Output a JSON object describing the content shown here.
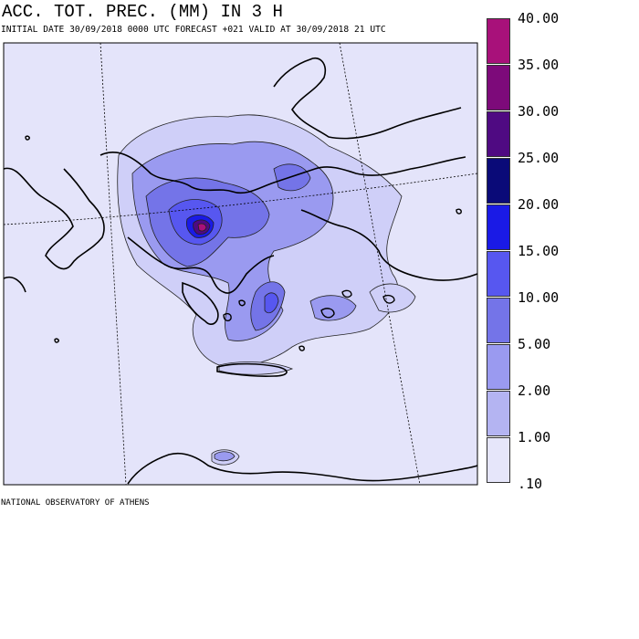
{
  "title": "ACC. TOT. PREC. (MM) IN 3 H",
  "subtitle": "INITIAL DATE 30/09/2018   0000 UTC FORECAST +021 VALID AT  30/09/2018  21 UTC",
  "footer": "NATIONAL OBSERVATORY OF ATHENS",
  "legend": {
    "levels": [
      "40.00",
      "35.00",
      "30.00",
      "25.00",
      "20.00",
      "15.00",
      "10.00",
      "5.00",
      "2.00",
      "1.00",
      ".10"
    ],
    "colors": [
      "#a8117a",
      "#7d0a7a",
      "#4f0a82",
      "#0a0a78",
      "#1a1ae6",
      "#5757f0",
      "#7474e8",
      "#9a9af0",
      "#b4b4f2",
      "#cfcff8",
      "#e6e6fa"
    ]
  },
  "colors": {
    "background": "#e4e4fa",
    "coast": "#000000"
  }
}
